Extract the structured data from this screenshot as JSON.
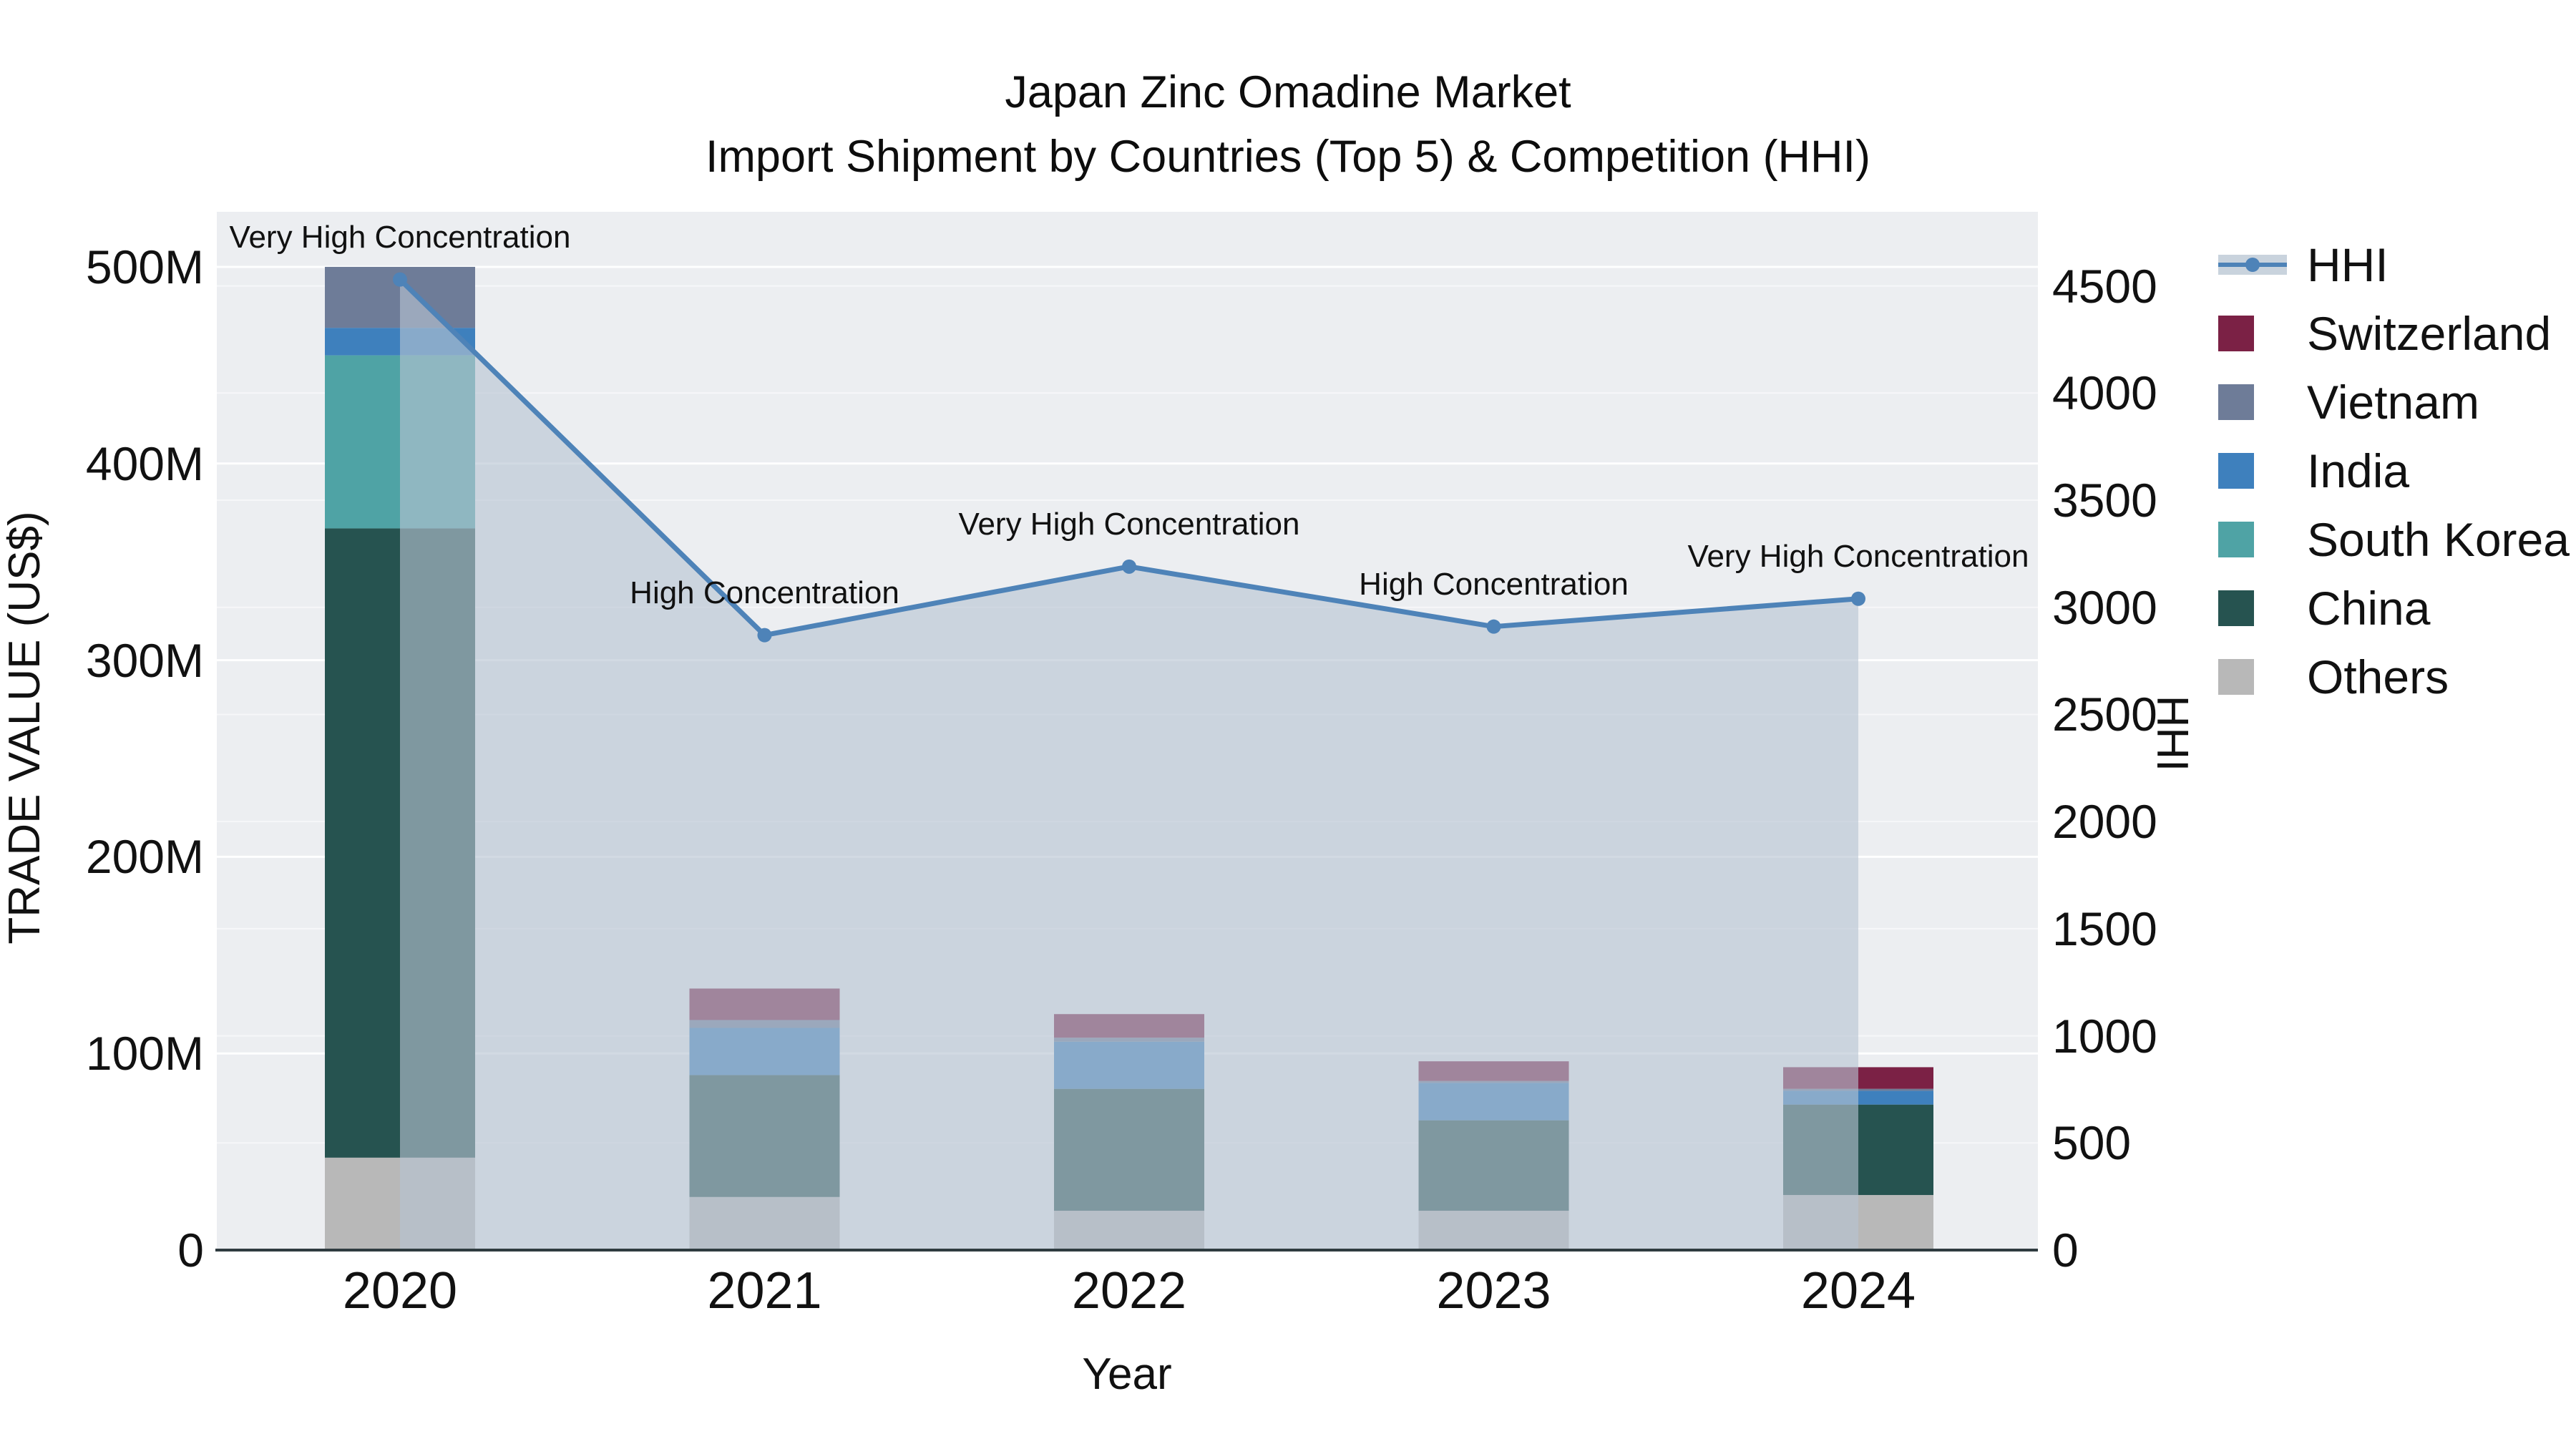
{
  "title": {
    "line1": "Japan Zinc Omadine Market",
    "line2": "Import Shipment by Countries (Top 5) & Competition (HHI)"
  },
  "axes": {
    "x": {
      "title": "Year",
      "categories": [
        "2020",
        "2021",
        "2022",
        "2023",
        "2024"
      ]
    },
    "y_left": {
      "title": "TRADE VALUE (US$)",
      "tick_labels": [
        "0",
        "100M",
        "200M",
        "300M",
        "400M",
        "500M"
      ],
      "tick_values": [
        0,
        100,
        200,
        300,
        400,
        500
      ],
      "range": [
        0,
        528
      ]
    },
    "y_right": {
      "title": "HHI",
      "tick_labels": [
        "0",
        "500",
        "1000",
        "1500",
        "2000",
        "2500",
        "3000",
        "3500",
        "4000",
        "4500"
      ],
      "tick_values": [
        0,
        500,
        1000,
        1500,
        2000,
        2500,
        3000,
        3500,
        4000,
        4500
      ],
      "range": [
        0,
        4846
      ]
    }
  },
  "chart_data": {
    "type": "bar",
    "subtype": "stacked-bar-with-line-overlay",
    "categories": [
      "2020",
      "2021",
      "2022",
      "2023",
      "2024"
    ],
    "value_unit": "million US$",
    "stack_order_bottom_to_top": [
      "Others",
      "China",
      "South Korea",
      "India",
      "Vietnam",
      "Switzerland"
    ],
    "series": [
      {
        "name": "Others",
        "color": "#b8b8b8",
        "values": [
          47,
          27,
          20,
          20,
          28
        ]
      },
      {
        "name": "China",
        "color": "#265350",
        "values": [
          320,
          62,
          62,
          46,
          46
        ]
      },
      {
        "name": "South Korea",
        "color": "#4fa3a5",
        "values": [
          88,
          0,
          0,
          0,
          0
        ]
      },
      {
        "name": "India",
        "color": "#3e80bd",
        "values": [
          14,
          24,
          24,
          19,
          7
        ]
      },
      {
        "name": "Vietnam",
        "color": "#6e7c98",
        "values": [
          31,
          4,
          2,
          1,
          1
        ]
      },
      {
        "name": "Switzerland",
        "color": "#7b2145",
        "values": [
          0,
          16,
          12,
          10,
          11
        ]
      }
    ],
    "line_series": {
      "name": "HHI",
      "color": "#4e83b8",
      "fill_color": "rgba(183,196,210,0.62)",
      "values": [
        4530,
        2870,
        3190,
        2910,
        3040
      ],
      "annotations": [
        "Very High Concentration",
        "High Concentration",
        "Very High Concentration",
        "High Concentration",
        "Very High Concentration"
      ]
    }
  },
  "legend": {
    "items": [
      {
        "label": "HHI",
        "type": "line",
        "color": "#4e83b8"
      },
      {
        "label": "Switzerland",
        "type": "square",
        "color": "#7b2145"
      },
      {
        "label": "Vietnam",
        "type": "square",
        "color": "#6e7c98"
      },
      {
        "label": "India",
        "type": "square",
        "color": "#3e80bd"
      },
      {
        "label": "South Korea",
        "type": "square",
        "color": "#4fa3a5"
      },
      {
        "label": "China",
        "type": "square",
        "color": "#265350"
      },
      {
        "label": "Others",
        "type": "square",
        "color": "#b8b8b8"
      }
    ]
  },
  "plot": {
    "background": "#eceef1",
    "grid_color": "#ffffff",
    "axis_line_color": "#2f3b40",
    "area_legend_color": "#c9d3dd"
  }
}
